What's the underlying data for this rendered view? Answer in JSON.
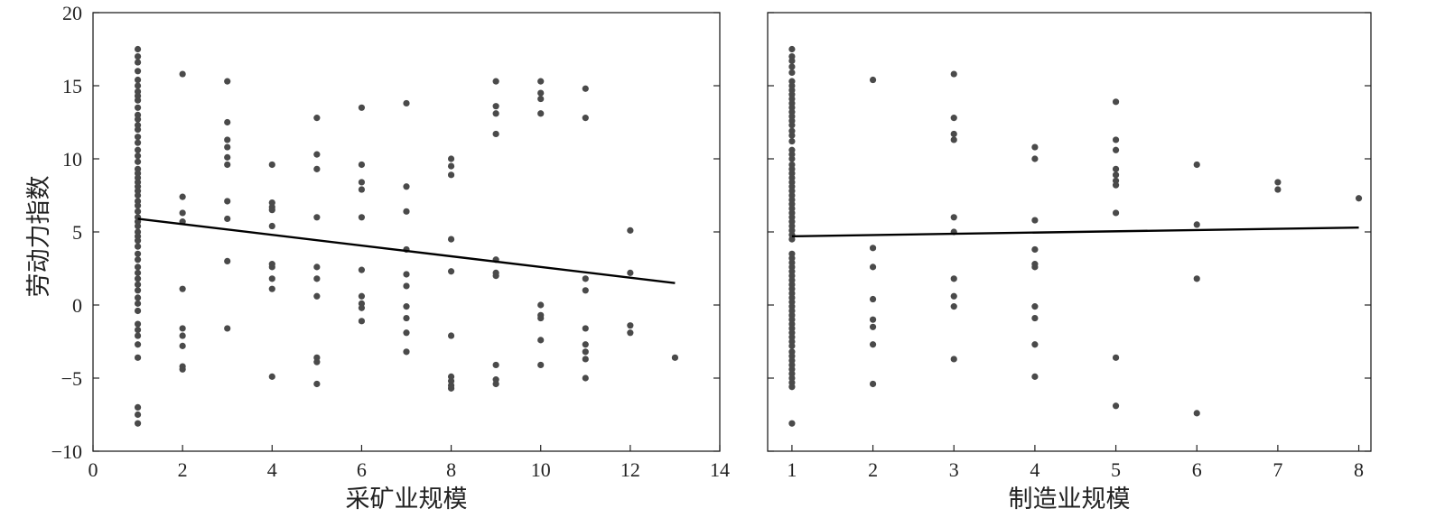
{
  "figure": {
    "ylabel": "劳动力指数",
    "colors": {
      "points": "#4a4a4a",
      "line": "#000000",
      "axes": "#222222"
    }
  },
  "chart_data": [
    {
      "type": "scatter",
      "xlabel": "采矿业规模",
      "ylabel": "劳动力指数",
      "xlim": [
        0,
        14
      ],
      "ylim": [
        -10,
        20
      ],
      "x_ticks": [
        "0",
        "2",
        "4",
        "6",
        "8",
        "10",
        "12",
        "14"
      ],
      "y_ticks": [
        "−10",
        "−5",
        "0",
        "5",
        "10",
        "15",
        "20"
      ],
      "grid": false,
      "series": [
        {
          "kind": "points",
          "points": [
            [
              1,
              17.5
            ],
            [
              1,
              17
            ],
            [
              1,
              16.6
            ],
            [
              1,
              16
            ],
            [
              1,
              15.4
            ],
            [
              1,
              15
            ],
            [
              1,
              14.6
            ],
            [
              1,
              14.3
            ],
            [
              1,
              14
            ],
            [
              1,
              13.5
            ],
            [
              1,
              13
            ],
            [
              1,
              12.7
            ],
            [
              1,
              12.3
            ],
            [
              1,
              12
            ],
            [
              1,
              11.5
            ],
            [
              1,
              11.1
            ],
            [
              1,
              10.6
            ],
            [
              1,
              10.2
            ],
            [
              1,
              9.8
            ],
            [
              1,
              9.3
            ],
            [
              1,
              9
            ],
            [
              1,
              8.7
            ],
            [
              1,
              8.4
            ],
            [
              1,
              8.1
            ],
            [
              1,
              7.8
            ],
            [
              1,
              7.5
            ],
            [
              1,
              7.1
            ],
            [
              1,
              6.8
            ],
            [
              1,
              6.4
            ],
            [
              1,
              6
            ],
            [
              1,
              5.7
            ],
            [
              1,
              5.4
            ],
            [
              1,
              5
            ],
            [
              1,
              4.7
            ],
            [
              1,
              4.4
            ],
            [
              1,
              4
            ],
            [
              1,
              3.5
            ],
            [
              1,
              3.1
            ],
            [
              1,
              2.6
            ],
            [
              1,
              2.2
            ],
            [
              1,
              1.8
            ],
            [
              1,
              1.4
            ],
            [
              1,
              1
            ],
            [
              1,
              0.5
            ],
            [
              1,
              0.1
            ],
            [
              1,
              -0.4
            ],
            [
              1,
              -1.3
            ],
            [
              1,
              -1.7
            ],
            [
              1,
              -2.1
            ],
            [
              1,
              -2.7
            ],
            [
              1,
              -3.6
            ],
            [
              1,
              -7
            ],
            [
              1,
              -7.5
            ],
            [
              1,
              -8.1
            ],
            [
              2,
              15.8
            ],
            [
              2,
              7.4
            ],
            [
              2,
              6.3
            ],
            [
              2,
              5.7
            ],
            [
              2,
              1.1
            ],
            [
              2,
              -1.6
            ],
            [
              2,
              -2.1
            ],
            [
              2,
              -2.8
            ],
            [
              2,
              -4.2
            ],
            [
              2,
              -4.4
            ],
            [
              3,
              15.3
            ],
            [
              3,
              12.5
            ],
            [
              3,
              11.3
            ],
            [
              3,
              10.8
            ],
            [
              3,
              10.1
            ],
            [
              3,
              9.6
            ],
            [
              3,
              7.1
            ],
            [
              3,
              5.9
            ],
            [
              3,
              3
            ],
            [
              3,
              -1.6
            ],
            [
              4,
              9.6
            ],
            [
              4,
              7
            ],
            [
              4,
              6.7
            ],
            [
              4,
              6.5
            ],
            [
              4,
              5.4
            ],
            [
              4,
              2.8
            ],
            [
              4,
              2.6
            ],
            [
              4,
              1.8
            ],
            [
              4,
              1.1
            ],
            [
              4,
              -4.9
            ],
            [
              5,
              12.8
            ],
            [
              5,
              10.3
            ],
            [
              5,
              9.3
            ],
            [
              5,
              6
            ],
            [
              5,
              2.6
            ],
            [
              5,
              1.8
            ],
            [
              5,
              0.6
            ],
            [
              5,
              -3.6
            ],
            [
              5,
              -3.9
            ],
            [
              5,
              -5.4
            ],
            [
              6,
              13.5
            ],
            [
              6,
              9.6
            ],
            [
              6,
              8.4
            ],
            [
              6,
              7.9
            ],
            [
              6,
              6
            ],
            [
              6,
              2.4
            ],
            [
              6,
              0.6
            ],
            [
              6,
              0.1
            ],
            [
              6,
              -0.2
            ],
            [
              6,
              -1.1
            ],
            [
              7,
              13.8
            ],
            [
              7,
              8.1
            ],
            [
              7,
              6.4
            ],
            [
              7,
              3.8
            ],
            [
              7,
              2.1
            ],
            [
              7,
              1.3
            ],
            [
              7,
              -0.1
            ],
            [
              7,
              -0.9
            ],
            [
              7,
              -1.9
            ],
            [
              7,
              -3.2
            ],
            [
              8,
              10
            ],
            [
              8,
              9.5
            ],
            [
              8,
              8.9
            ],
            [
              8,
              4.5
            ],
            [
              8,
              2.3
            ],
            [
              8,
              -2.1
            ],
            [
              8,
              -4.9
            ],
            [
              8,
              -5.2
            ],
            [
              8,
              -5.5
            ],
            [
              8,
              -5.7
            ],
            [
              9,
              15.3
            ],
            [
              9,
              13.6
            ],
            [
              9,
              13.1
            ],
            [
              9,
              11.7
            ],
            [
              9,
              3.1
            ],
            [
              9,
              2.2
            ],
            [
              9,
              2
            ],
            [
              9,
              -4.1
            ],
            [
              9,
              -5.1
            ],
            [
              9,
              -5.4
            ],
            [
              10,
              15.3
            ],
            [
              10,
              14.5
            ],
            [
              10,
              14.1
            ],
            [
              10,
              13.1
            ],
            [
              10,
              0
            ],
            [
              10,
              -0.7
            ],
            [
              10,
              -0.9
            ],
            [
              10,
              -2.4
            ],
            [
              10,
              -4.1
            ],
            [
              11,
              14.8
            ],
            [
              11,
              12.8
            ],
            [
              11,
              1.8
            ],
            [
              11,
              1
            ],
            [
              11,
              -1.6
            ],
            [
              11,
              -2.7
            ],
            [
              11,
              -3.2
            ],
            [
              11,
              -3.7
            ],
            [
              11,
              -5
            ],
            [
              12,
              5.1
            ],
            [
              12,
              2.2
            ],
            [
              12,
              -1.4
            ],
            [
              12,
              -1.9
            ],
            [
              13,
              -3.6
            ]
          ]
        },
        {
          "kind": "fit_line",
          "x": [
            1,
            13
          ],
          "y": [
            5.9,
            1.5
          ]
        }
      ]
    },
    {
      "type": "scatter",
      "xlabel": "制造业规模",
      "ylabel": "",
      "xlim": [
        0.7,
        8.15
      ],
      "ylim": [
        -10,
        20
      ],
      "x_ticks": [
        "1",
        "2",
        "3",
        "4",
        "5",
        "6",
        "7",
        "8"
      ],
      "y_ticks": [],
      "grid": false,
      "series": [
        {
          "kind": "points",
          "points": [
            [
              1,
              17.5
            ],
            [
              1,
              17
            ],
            [
              1,
              16.7
            ],
            [
              1,
              16.3
            ],
            [
              1,
              15.9
            ],
            [
              1,
              15.3
            ],
            [
              1,
              15
            ],
            [
              1,
              14.7
            ],
            [
              1,
              14.4
            ],
            [
              1,
              14.1
            ],
            [
              1,
              13.8
            ],
            [
              1,
              13.5
            ],
            [
              1,
              13.2
            ],
            [
              1,
              12.9
            ],
            [
              1,
              12.6
            ],
            [
              1,
              12.3
            ],
            [
              1,
              11.9
            ],
            [
              1,
              11.6
            ],
            [
              1,
              11.2
            ],
            [
              1,
              10.6
            ],
            [
              1,
              10.3
            ],
            [
              1,
              10
            ],
            [
              1,
              9.6
            ],
            [
              1,
              9.3
            ],
            [
              1,
              9
            ],
            [
              1,
              8.7
            ],
            [
              1,
              8.4
            ],
            [
              1,
              8.1
            ],
            [
              1,
              7.8
            ],
            [
              1,
              7.5
            ],
            [
              1,
              7.2
            ],
            [
              1,
              6.9
            ],
            [
              1,
              6.6
            ],
            [
              1,
              6.3
            ],
            [
              1,
              6
            ],
            [
              1,
              5.7
            ],
            [
              1,
              5.4
            ],
            [
              1,
              5.1
            ],
            [
              1,
              4.8
            ],
            [
              1,
              4.5
            ],
            [
              1,
              3.5
            ],
            [
              1,
              3.2
            ],
            [
              1,
              2.9
            ],
            [
              1,
              2.6
            ],
            [
              1,
              2.3
            ],
            [
              1,
              2
            ],
            [
              1,
              1.7
            ],
            [
              1,
              1.4
            ],
            [
              1,
              1.1
            ],
            [
              1,
              0.8
            ],
            [
              1,
              0.5
            ],
            [
              1,
              0.2
            ],
            [
              1,
              -0.1
            ],
            [
              1,
              -0.4
            ],
            [
              1,
              -0.7
            ],
            [
              1,
              -1
            ],
            [
              1,
              -1.3
            ],
            [
              1,
              -1.6
            ],
            [
              1,
              -1.9
            ],
            [
              1,
              -2.2
            ],
            [
              1,
              -2.5
            ],
            [
              1,
              -2.8
            ],
            [
              1,
              -3.2
            ],
            [
              1,
              -3.5
            ],
            [
              1,
              -3.8
            ],
            [
              1,
              -4.1
            ],
            [
              1,
              -4.4
            ],
            [
              1,
              -4.7
            ],
            [
              1,
              -5
            ],
            [
              1,
              -5.3
            ],
            [
              1,
              -5.6
            ],
            [
              1,
              -8.1
            ],
            [
              2,
              15.4
            ],
            [
              2,
              3.9
            ],
            [
              2,
              2.6
            ],
            [
              2,
              0.4
            ],
            [
              2,
              -1
            ],
            [
              2,
              -1.5
            ],
            [
              2,
              -2.7
            ],
            [
              2,
              -5.4
            ],
            [
              3,
              15.8
            ],
            [
              3,
              12.8
            ],
            [
              3,
              11.7
            ],
            [
              3,
              11.3
            ],
            [
              3,
              6
            ],
            [
              3,
              5
            ],
            [
              3,
              1.8
            ],
            [
              3,
              0.6
            ],
            [
              3,
              -0.1
            ],
            [
              3,
              -3.7
            ],
            [
              4,
              10.8
            ],
            [
              4,
              10
            ],
            [
              4,
              5.8
            ],
            [
              4,
              3.8
            ],
            [
              4,
              2.8
            ],
            [
              4,
              2.6
            ],
            [
              4,
              -0.1
            ],
            [
              4,
              -0.9
            ],
            [
              4,
              -2.7
            ],
            [
              4,
              -4.9
            ],
            [
              5,
              13.9
            ],
            [
              5,
              11.3
            ],
            [
              5,
              10.6
            ],
            [
              5,
              9.3
            ],
            [
              5,
              8.9
            ],
            [
              5,
              8.5
            ],
            [
              5,
              8.2
            ],
            [
              5,
              6.3
            ],
            [
              5,
              -3.6
            ],
            [
              5,
              -6.9
            ],
            [
              6,
              9.6
            ],
            [
              6,
              5.5
            ],
            [
              6,
              1.8
            ],
            [
              6,
              -7.4
            ],
            [
              7,
              8.4
            ],
            [
              7,
              7.9
            ],
            [
              8,
              7.3
            ]
          ]
        },
        {
          "kind": "fit_line",
          "x": [
            1,
            8
          ],
          "y": [
            4.7,
            5.3
          ]
        }
      ]
    }
  ]
}
